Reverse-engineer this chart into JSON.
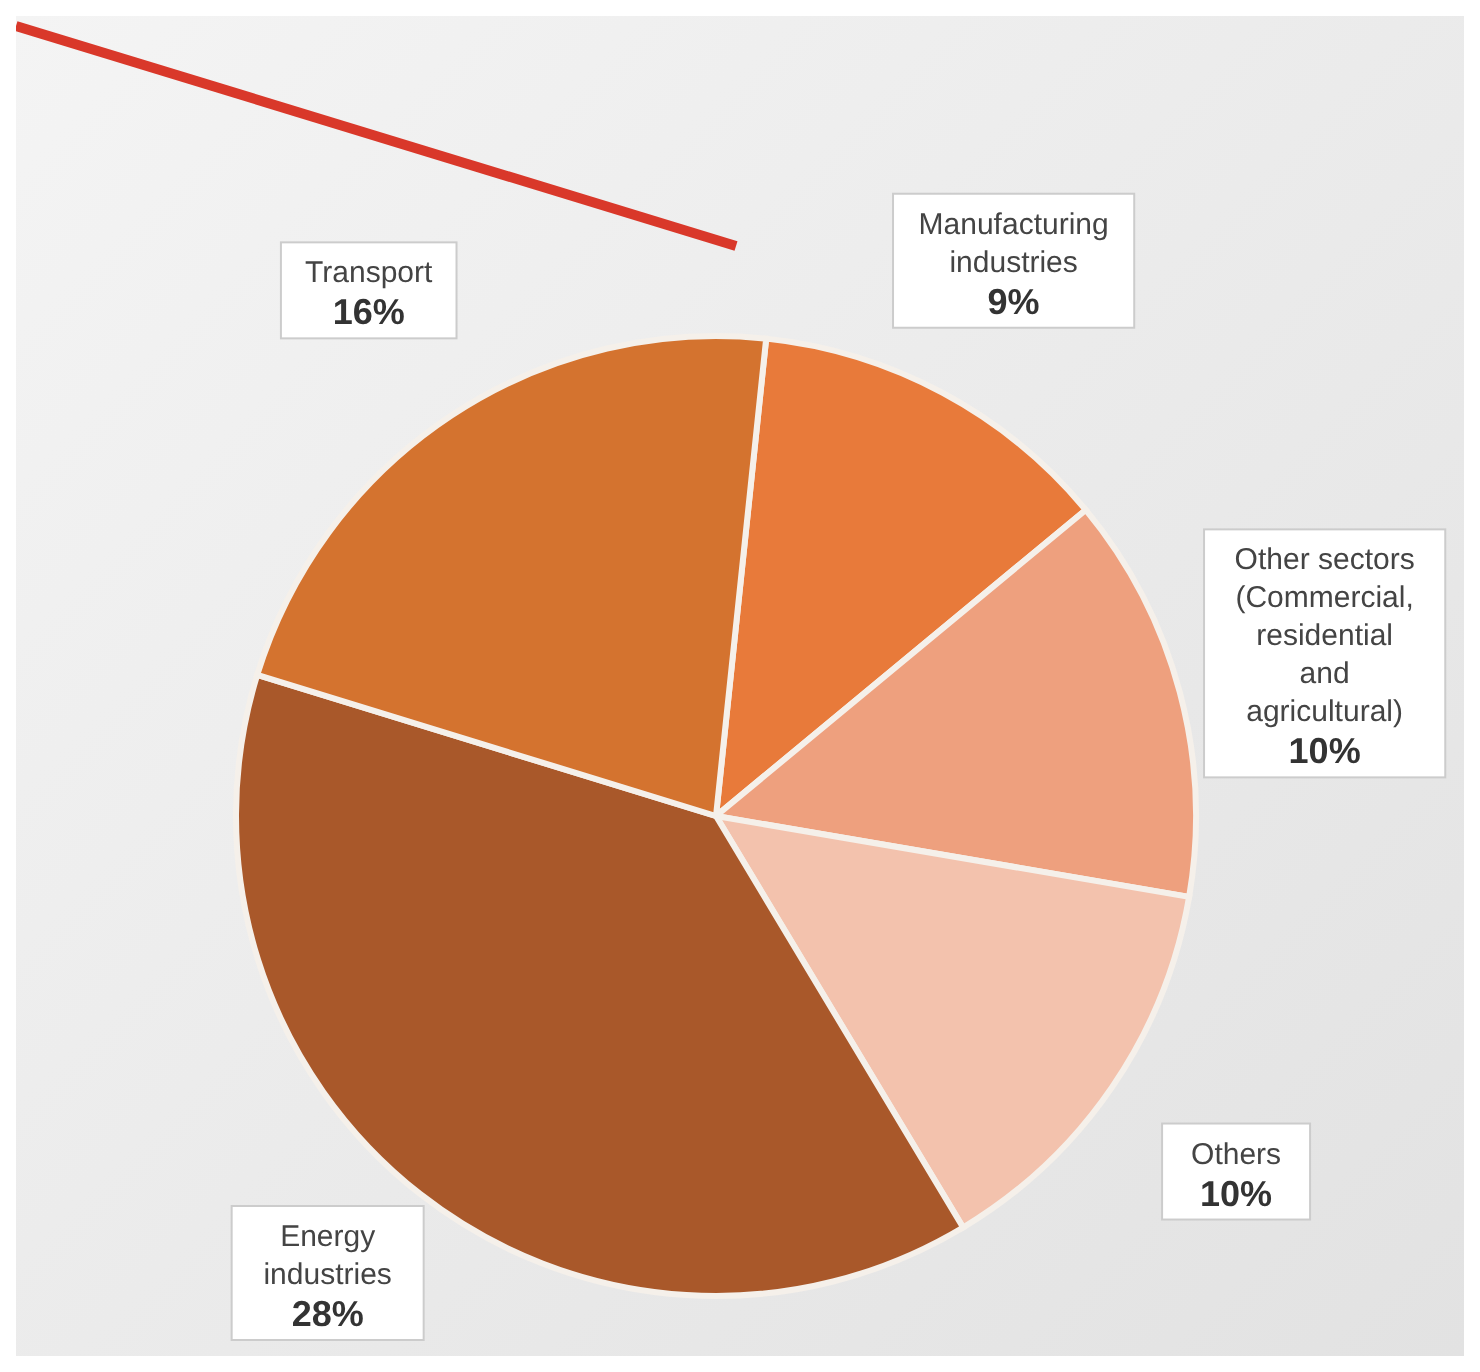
{
  "chart_data": {
    "type": "pie",
    "categories": [
      "Manufacturing industries",
      "Other sectors (Commercial, residential and agricultural)",
      "Others",
      "Energy industries",
      "Transport"
    ],
    "values": [
      9,
      10,
      10,
      28,
      16
    ],
    "value_labels": [
      "9%",
      "10%",
      "10%",
      "28%",
      "16%"
    ],
    "colors": [
      "#e87a3a",
      "#eea07e",
      "#f3c2ad",
      "#a9582a",
      "#d4732f"
    ]
  }
}
